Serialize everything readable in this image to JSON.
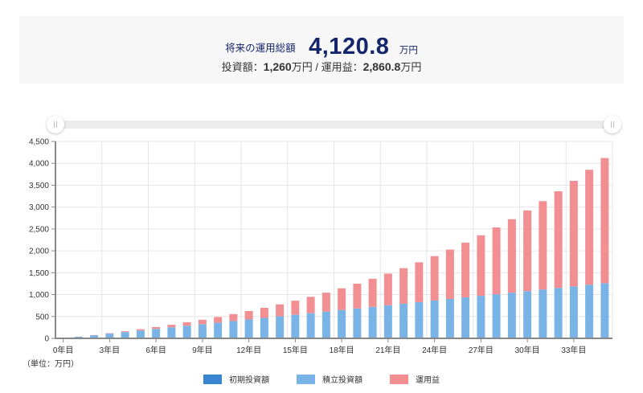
{
  "summary": {
    "label": "将来の運用総額",
    "total": "4,120.8",
    "unit": "万円",
    "investment_label": "投資額：",
    "investment_value": "1,260",
    "investment_unit": "万円",
    "separator": " / ",
    "gain_label": "運用益：",
    "gain_value": "2,860.8",
    "gain_unit": "万円"
  },
  "slider": {
    "min_year": 0,
    "max_year": 35,
    "start_year": 0,
    "end_year": 35
  },
  "unit_note": "（単位：万円）",
  "legend": [
    {
      "label": "初期投資額",
      "color": "#3a86cf"
    },
    {
      "label": "積立投資額",
      "color": "#7ab4e6"
    },
    {
      "label": "運用益",
      "color": "#f28f93"
    }
  ],
  "chart_data": {
    "type": "bar",
    "stacked": true,
    "title": "",
    "xlabel": "",
    "ylabel": "（単位：万円）",
    "ylim": [
      0,
      4500
    ],
    "grid": true,
    "legend_position": "bottom",
    "yticks": [
      0,
      500,
      1000,
      1500,
      2000,
      2500,
      3000,
      3500,
      4000,
      4500
    ],
    "ytick_labels": [
      "0",
      "500",
      "1,000",
      "1,500",
      "2,000",
      "2,500",
      "3,000",
      "3,500",
      "4,000",
      "4,500"
    ],
    "xtick_every": 3,
    "categories": [
      "0年目",
      "1年目",
      "2年目",
      "3年目",
      "4年目",
      "5年目",
      "6年目",
      "7年目",
      "8年目",
      "9年目",
      "10年目",
      "11年目",
      "12年目",
      "13年目",
      "14年目",
      "15年目",
      "16年目",
      "17年目",
      "18年目",
      "19年目",
      "20年目",
      "21年目",
      "22年目",
      "23年目",
      "24年目",
      "25年目",
      "26年目",
      "27年目",
      "28年目",
      "29年目",
      "30年目",
      "31年目",
      "32年目",
      "33年目",
      "34年目",
      "35年目"
    ],
    "series": [
      {
        "name": "初期投資額",
        "color": "#3a86cf",
        "values": [
          0,
          0,
          0,
          0,
          0,
          0,
          0,
          0,
          0,
          0,
          0,
          0,
          0,
          0,
          0,
          0,
          0,
          0,
          0,
          0,
          0,
          0,
          0,
          0,
          0,
          0,
          0,
          0,
          0,
          0,
          0,
          0,
          0,
          0,
          0,
          0
        ]
      },
      {
        "name": "積立投資額",
        "color": "#7ab4e6",
        "values": [
          0,
          36,
          72,
          108,
          144,
          180,
          216,
          252,
          288,
          324,
          360,
          396,
          432,
          468,
          504,
          540,
          576,
          612,
          648,
          684,
          720,
          756,
          792,
          828,
          864,
          900,
          936,
          972,
          1008,
          1044,
          1080,
          1116,
          1152,
          1188,
          1224,
          1260
        ]
      },
      {
        "name": "運用益",
        "color": "#f28f93",
        "values": [
          0,
          1.0,
          4.2,
          9.7,
          17.8,
          28.5,
          41.9,
          58.4,
          78.0,
          100.9,
          127.4,
          157.7,
          191.8,
          230.3,
          273.1,
          320.7,
          373.4,
          431.3,
          494.9,
          564.4,
          640.3,
          722.9,
          812.6,
          909.9,
          1015.1,
          1128.9,
          1251.6,
          1383.8,
          1526.2,
          1679.2,
          1843.5,
          2019.9,
          2209.1,
          2411.7,
          2628.7,
          2860.8
        ]
      }
    ],
    "totals": [
      0,
      37.0,
      76.2,
      117.7,
      161.8,
      208.5,
      257.9,
      310.4,
      366.0,
      424.9,
      487.4,
      553.7,
      623.8,
      698.3,
      777.1,
      860.7,
      949.4,
      1043.3,
      1142.9,
      1248.4,
      1360.3,
      1478.9,
      1604.6,
      1737.9,
      1879.1,
      2028.9,
      2187.6,
      2355.8,
      2534.2,
      2723.2,
      2923.5,
      3135.9,
      3361.1,
      3599.7,
      3852.7,
      4120.8
    ]
  }
}
